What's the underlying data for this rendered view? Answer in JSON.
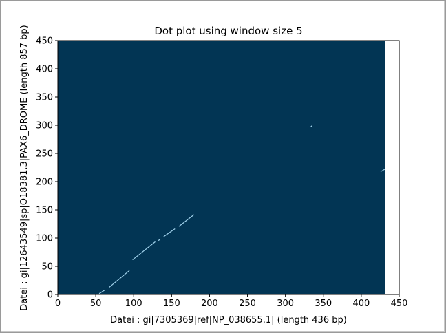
{
  "chart_data": {
    "type": "scatter",
    "title": "Dot plot using window size 5",
    "xlabel": "Datei : gi|7305369|ref|NP_038655.1| (length 436 bp)",
    "ylabel": "Datei : gi|12643549|sp|O18381.3|PAX6_DROME (length 857 bp)",
    "xlim": [
      0,
      450
    ],
    "ylim": [
      0,
      450
    ],
    "x_ticks": [
      0,
      50,
      100,
      150,
      200,
      250,
      300,
      350,
      400,
      450
    ],
    "y_ticks": [
      0,
      50,
      100,
      150,
      200,
      250,
      300,
      350,
      400,
      450
    ],
    "grid": false,
    "image_extent": {
      "x": [
        0,
        431
      ],
      "y": [
        0,
        450
      ]
    },
    "colors": {
      "background": "#023554",
      "match": "#9fd0ea"
    },
    "match_segments": [
      {
        "x": [
          55,
          62
        ],
        "y": [
          2,
          8
        ]
      },
      {
        "x": [
          68,
          94
        ],
        "y": [
          13,
          42
        ]
      },
      {
        "x": [
          99,
          128
        ],
        "y": [
          62,
          93
        ]
      },
      {
        "x": [
          133,
          134
        ],
        "y": [
          96,
          97
        ]
      },
      {
        "x": [
          140,
          154
        ],
        "y": [
          103,
          116
        ]
      },
      {
        "x": [
          160,
          179
        ],
        "y": [
          121,
          141
        ]
      },
      {
        "x": [
          334,
          335
        ],
        "y": [
          298,
          299
        ]
      },
      {
        "x": [
          426,
          431
        ],
        "y": [
          218,
          222
        ]
      }
    ]
  }
}
